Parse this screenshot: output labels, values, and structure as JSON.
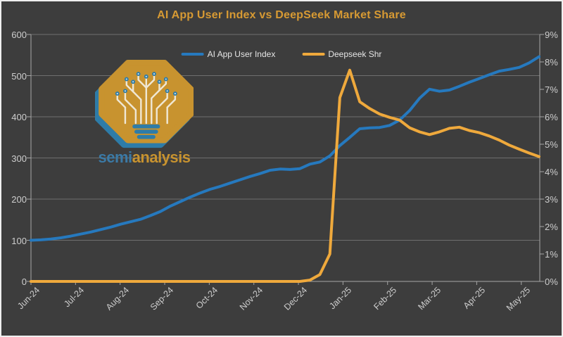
{
  "title": "AI App User Index vs DeepSeek Market Share",
  "logo": {
    "brand_semi": "semi",
    "brand_analysis": "analysis"
  },
  "colors": {
    "background": "#3D3D3D",
    "title": "#D79A33",
    "blue_series": "#2679BE",
    "orange_series": "#EFA93C",
    "gridline": "#6F6F6F",
    "axis": "#A6A6A6",
    "tick_label": "#CDCDCD",
    "logo_gold": "#C8932F",
    "logo_blue": "#2E7CA8"
  },
  "chart_data": {
    "type": "line",
    "title": "AI App User Index vs DeepSeek Market Share",
    "grid": true,
    "legend_position": "top-center",
    "x_ticks": [
      "Jun-24",
      "Jul-24",
      "Aug-24",
      "Sep-24",
      "Oct-24",
      "Nov-24",
      "Dec-24",
      "Jan-25",
      "Feb-25",
      "Mar-25",
      "Apr-25",
      "May-25"
    ],
    "y_left": {
      "label": "",
      "ticks": [
        0,
        100,
        200,
        300,
        400,
        500,
        600
      ],
      "range": [
        0,
        600
      ]
    },
    "y_right": {
      "label": "",
      "tick_labels": [
        "0%",
        "1%",
        "2%",
        "3%",
        "4%",
        "5%",
        "6%",
        "7%",
        "8%",
        "9%"
      ],
      "range_percent": [
        0,
        9
      ]
    },
    "series": [
      {
        "name": "AI App User Index",
        "axis": "left",
        "color": "#2679BE",
        "values": [
          100,
          101,
          103,
          106,
          110,
          115,
          120,
          126,
          132,
          139,
          145,
          151,
          160,
          170,
          183,
          194,
          205,
          215,
          224,
          231,
          239,
          247,
          255,
          262,
          270,
          273,
          272,
          274,
          285,
          290,
          305,
          330,
          350,
          371,
          373,
          374,
          379,
          392,
          415,
          445,
          467,
          462,
          465,
          474,
          484,
          493,
          502,
          511,
          515,
          520,
          531,
          546
        ]
      },
      {
        "name": "Deepseek Shr",
        "axis": "right",
        "color": "#EFA93C",
        "values": [
          0,
          0,
          0,
          0,
          0,
          0,
          0,
          0,
          0,
          0,
          0,
          0,
          0,
          0,
          0,
          0,
          0,
          0,
          0,
          0,
          0,
          0,
          0,
          0,
          0,
          0,
          0,
          0,
          0.05,
          0.25,
          1.0,
          6.7,
          7.7,
          6.55,
          6.3,
          6.1,
          5.98,
          5.88,
          5.6,
          5.45,
          5.35,
          5.45,
          5.58,
          5.62,
          5.5,
          5.42,
          5.3,
          5.15,
          4.97,
          4.82,
          4.68,
          4.55
        ]
      }
    ]
  }
}
